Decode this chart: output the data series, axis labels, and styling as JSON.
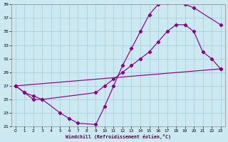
{
  "xlabel": "Windchill (Refroidissement éolien,°C)",
  "bg_color": "#cce8f0",
  "line_color": "#8b008b",
  "grid_color": "#a0ccd8",
  "xlim": [
    -0.5,
    23.5
  ],
  "ylim": [
    21,
    39
  ],
  "xticks": [
    0,
    1,
    2,
    3,
    4,
    5,
    6,
    7,
    8,
    9,
    10,
    11,
    12,
    13,
    14,
    15,
    16,
    17,
    18,
    19,
    20,
    21,
    22,
    23
  ],
  "yticks": [
    21,
    23,
    25,
    27,
    29,
    31,
    33,
    35,
    37,
    39
  ],
  "line1_x": [
    0,
    1,
    2,
    3,
    5,
    6,
    7,
    9,
    10,
    11,
    12,
    13,
    14,
    15,
    16,
    17,
    18,
    19,
    20,
    23
  ],
  "line1_y": [
    27,
    26,
    25,
    25,
    23,
    22.2,
    21.5,
    21.3,
    24,
    27,
    30,
    32.5,
    35,
    37.5,
    39,
    39.2,
    39.5,
    39,
    38.5,
    36
  ],
  "line2_x": [
    0,
    1,
    2,
    3,
    9,
    10,
    11,
    12,
    13,
    14,
    15,
    16,
    17,
    18,
    19,
    20,
    21,
    22,
    23
  ],
  "line2_y": [
    27,
    26,
    25.5,
    25,
    26,
    27,
    28,
    29,
    30,
    31,
    32,
    33.5,
    35,
    36,
    36,
    35,
    32,
    31,
    29.5
  ],
  "line3_x": [
    0,
    23
  ],
  "line3_y": [
    27,
    29.5
  ]
}
